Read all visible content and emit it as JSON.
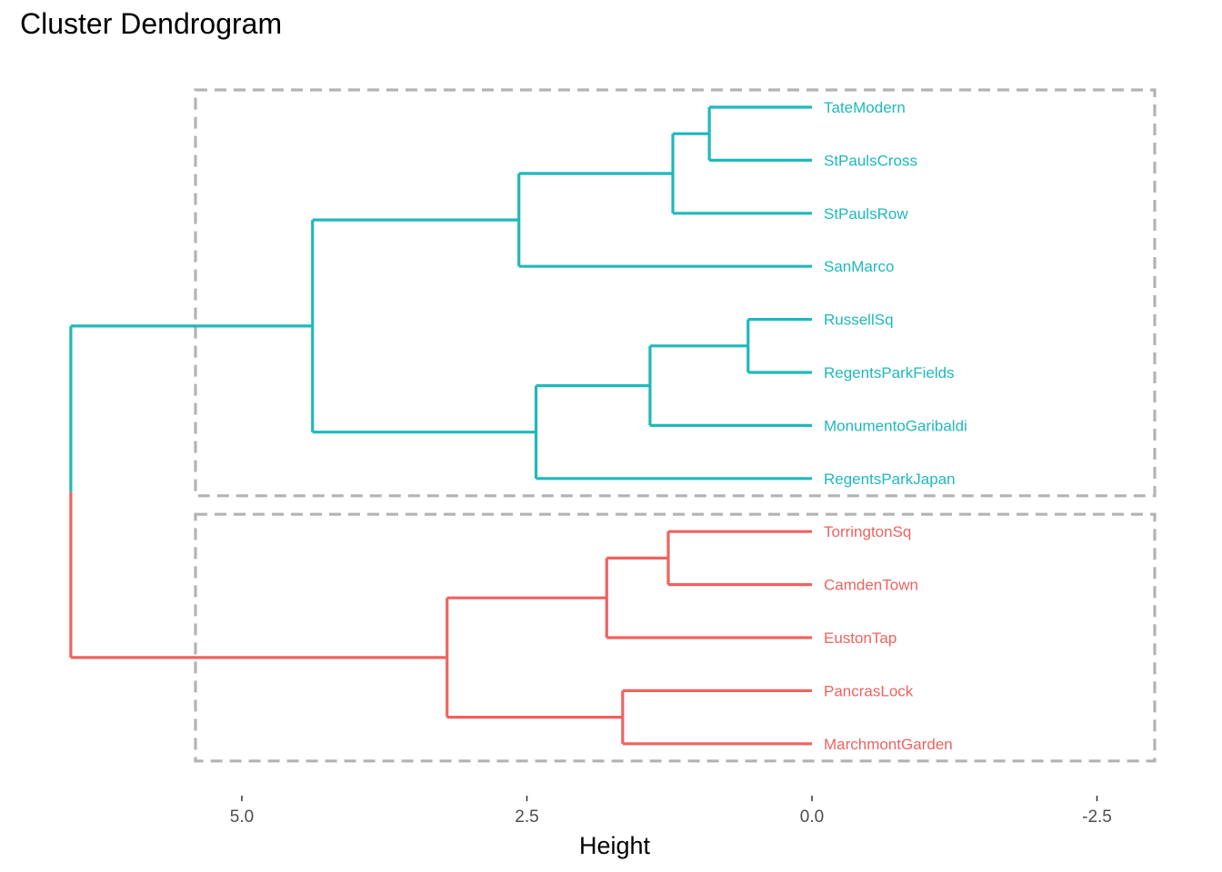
{
  "chart_data": {
    "type": "dendrogram",
    "title": "Cluster Dendrogram",
    "xlabel": "Height",
    "ylabel": "",
    "xlim": [
      6.5,
      -3.0
    ],
    "x_reversed": true,
    "xticks": [
      5.0,
      2.5,
      0.0,
      -2.5
    ],
    "xtick_labels": [
      "5.0",
      "2.5",
      "0.0",
      "-2.5"
    ],
    "grid": false,
    "leaves": [
      "TateModern",
      "StPaulsCross",
      "StPaulsRow",
      "SanMarco",
      "RussellSq",
      "RegentsParkFields",
      "MonumentoGaribaldi",
      "RegentsParkJapan",
      "TorringtonSq",
      "CamdenTown",
      "EustonTap",
      "PancrasLock",
      "MarchmontGarden"
    ],
    "leaf_clusters": [
      1,
      1,
      1,
      1,
      1,
      1,
      1,
      1,
      2,
      2,
      2,
      2,
      2
    ],
    "merges": [
      {
        "left": "TateModern",
        "right": "StPaulsCross",
        "height": 0.9,
        "cluster": 1
      },
      {
        "left": "m1",
        "right": "StPaulsRow",
        "height": 1.22,
        "cluster": 1
      },
      {
        "left": "m2",
        "right": "SanMarco",
        "height": 2.57,
        "cluster": 1
      },
      {
        "left": "RussellSq",
        "right": "RegentsParkFields",
        "height": 0.56,
        "cluster": 1
      },
      {
        "left": "m4",
        "right": "MonumentoGaribaldi",
        "height": 1.42,
        "cluster": 1
      },
      {
        "left": "m5",
        "right": "RegentsParkJapan",
        "height": 2.42,
        "cluster": 1
      },
      {
        "left": "m3",
        "right": "m6",
        "height": 4.38,
        "cluster": 1
      },
      {
        "left": "TorringtonSq",
        "right": "CamdenTown",
        "height": 1.26,
        "cluster": 2
      },
      {
        "left": "m8",
        "right": "EustonTap",
        "height": 1.8,
        "cluster": 2
      },
      {
        "left": "PancrasLock",
        "right": "MarchmontGarden",
        "height": 1.66,
        "cluster": 2
      },
      {
        "left": "m9",
        "right": "m10",
        "height": 3.2,
        "cluster": 2
      },
      {
        "left": "m7",
        "right": "m11",
        "height": 6.5,
        "cluster": 0
      }
    ],
    "cluster_rectangles": true,
    "colors": {
      "cluster1": "#1FB8BC",
      "cluster2": "#EE6360",
      "rect": "#B3B3B3",
      "tick_text": "#4D4D4D"
    }
  }
}
